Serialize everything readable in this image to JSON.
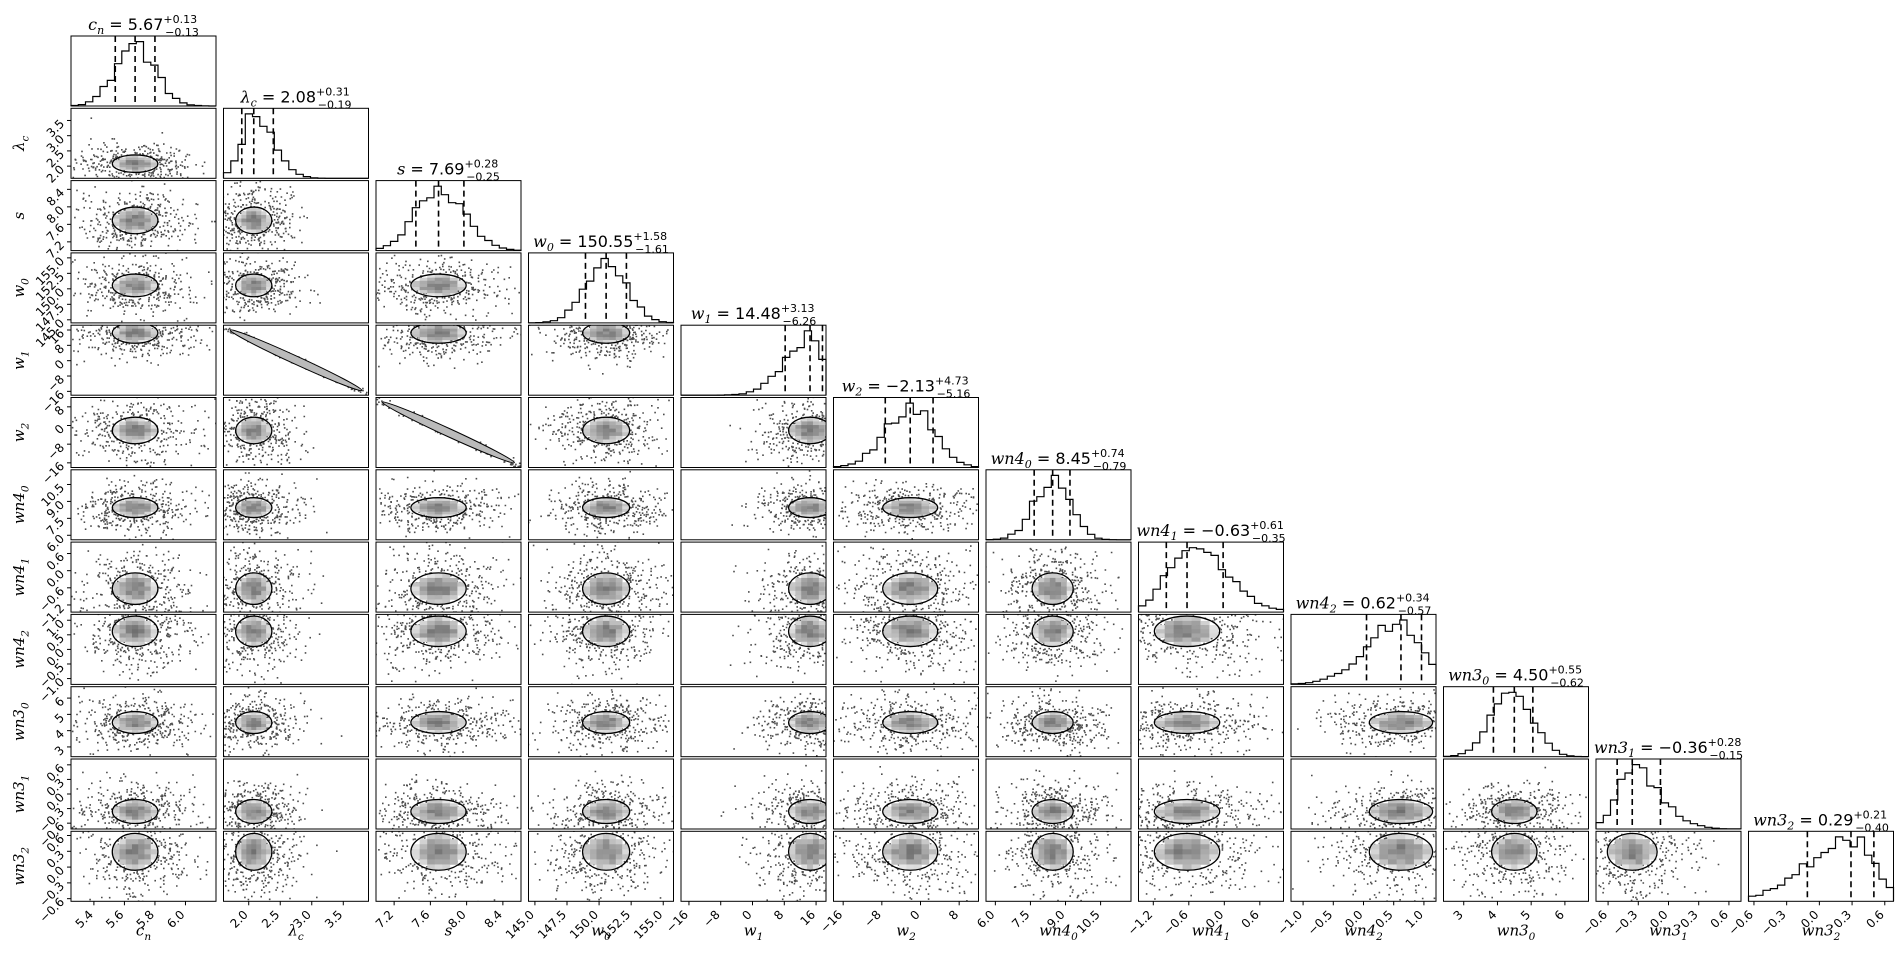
{
  "chart_data": {
    "type": "corner",
    "parameters": [
      {
        "label": "c_n",
        "title_sym": "c",
        "title_sub": "n",
        "median": "5.67",
        "plus": "+0.13",
        "minus": "−0.13",
        "q": [
          5.54,
          5.67,
          5.8
        ],
        "range": [
          5.25,
          6.2
        ],
        "ticks": [
          "5.4",
          "5.6",
          "5.8",
          "6.0"
        ],
        "tickvals": [
          5.4,
          5.6,
          5.8,
          6.0
        ],
        "xlabel": "c_n"
      },
      {
        "label": "λ_c",
        "title_sym": "λ",
        "title_sub": "c",
        "median": "2.08",
        "plus": "+0.31",
        "minus": "−0.19",
        "q": [
          1.89,
          2.08,
          2.39
        ],
        "range": [
          1.6,
          3.9
        ],
        "ticks": [
          "2.0",
          "2.5",
          "3.0",
          "3.5"
        ],
        "tickvals": [
          2.0,
          2.5,
          3.0,
          3.5
        ],
        "xlabel": "λ_c",
        "skew": "right"
      },
      {
        "label": "s",
        "title_sym": "s",
        "title_sub": "",
        "median": "7.69",
        "plus": "+0.28",
        "minus": "−0.25",
        "q": [
          7.44,
          7.69,
          7.97
        ],
        "range": [
          7.0,
          8.6
        ],
        "ticks": [
          "7.2",
          "7.6",
          "8.0",
          "8.4"
        ],
        "tickvals": [
          7.2,
          7.6,
          8.0,
          8.4
        ],
        "xlabel": "s"
      },
      {
        "label": "w_0",
        "title_sym": "w",
        "title_sub": "0",
        "median": "150.55",
        "plus": "+1.58",
        "minus": "−1.61",
        "q": [
          148.94,
          150.55,
          152.13
        ],
        "range": [
          144.5,
          155.8
        ],
        "ticks": [
          "145.0",
          "147.5",
          "150.0",
          "152.5",
          "155.0"
        ],
        "tickvals": [
          145,
          147.5,
          150,
          152.5,
          155
        ],
        "xlabel": "w_0"
      },
      {
        "label": "w_1",
        "title_sym": "w",
        "title_sub": "1",
        "median": "14.48",
        "plus": "+3.13",
        "minus": "−6.26",
        "q": [
          8.22,
          14.48,
          17.61
        ],
        "range": [
          -18,
          18.5
        ],
        "ticks": [
          "−16",
          "−8",
          "0",
          "8",
          "16"
        ],
        "tickvals": [
          -16,
          -8,
          0,
          8,
          16
        ],
        "xlabel": "w_1",
        "skew": "left"
      },
      {
        "label": "w_2",
        "title_sym": "w",
        "title_sub": "2",
        "median": "−2.13",
        "plus": "+4.73",
        "minus": "−5.16",
        "q": [
          -7.29,
          -2.13,
          2.6
        ],
        "range": [
          -18,
          12
        ],
        "ticks": [
          "−16",
          "−8",
          "0",
          "8"
        ],
        "tickvals": [
          -16,
          -8,
          0,
          8
        ],
        "xlabel": "w_2"
      },
      {
        "label": "wn4_0",
        "title_sym": "wn4",
        "title_sub": "0",
        "median": "8.45",
        "plus": "+0.74",
        "minus": "−0.79",
        "q": [
          7.66,
          8.45,
          9.19
        ],
        "range": [
          5.6,
          11.8
        ],
        "ticks": [
          "6.0",
          "7.5",
          "9.0",
          "10.5"
        ],
        "tickvals": [
          6.0,
          7.5,
          9.0,
          10.5
        ],
        "xlabel": "wn4_0"
      },
      {
        "label": "wn4_1",
        "title_sym": "wn4",
        "title_sub": "1",
        "median": "−0.63",
        "plus": "+0.61",
        "minus": "−0.35",
        "q": [
          -0.98,
          -0.63,
          -0.02
        ],
        "range": [
          -1.45,
          1.0
        ],
        "ticks": [
          "−1.2",
          "−0.6",
          "0.0",
          "0.6"
        ],
        "tickvals": [
          -1.2,
          -0.6,
          0.0,
          0.6
        ],
        "xlabel": "wn4_1",
        "skew": "right"
      },
      {
        "label": "wn4_2",
        "title_sym": "wn4",
        "title_sub": "2",
        "median": "0.62",
        "plus": "+0.34",
        "minus": "−0.57",
        "q": [
          0.05,
          0.62,
          0.96
        ],
        "range": [
          -1.2,
          1.2
        ],
        "ticks": [
          "−1.0",
          "−0.5",
          "0.0",
          "0.5",
          "1.0"
        ],
        "tickvals": [
          -1.0,
          -0.5,
          0.0,
          0.5,
          1.0
        ],
        "xlabel": "wn4_2",
        "skew": "left"
      },
      {
        "label": "wn3_0",
        "title_sym": "wn3",
        "title_sub": "0",
        "median": "4.50",
        "plus": "+0.55",
        "minus": "−0.62",
        "q": [
          3.88,
          4.5,
          5.05
        ],
        "range": [
          2.4,
          6.7
        ],
        "ticks": [
          "3",
          "4",
          "5",
          "6"
        ],
        "tickvals": [
          3,
          4,
          5,
          6
        ],
        "xlabel": "wn3_0"
      },
      {
        "label": "wn3_1",
        "title_sym": "wn3",
        "title_sub": "1",
        "median": "−0.36",
        "plus": "+0.28",
        "minus": "−0.15",
        "q": [
          -0.51,
          -0.36,
          -0.08
        ],
        "range": [
          -0.72,
          0.72
        ],
        "ticks": [
          "−0.6",
          "−0.3",
          "0.0",
          "0.3",
          "0.6"
        ],
        "tickvals": [
          -0.6,
          -0.3,
          0.0,
          0.3,
          0.6
        ],
        "xlabel": "wn3_1",
        "skew": "right"
      },
      {
        "label": "wn3_2",
        "title_sym": "wn3",
        "title_sub": "2",
        "median": "0.29",
        "plus": "+0.21",
        "minus": "−0.40",
        "q": [
          -0.11,
          0.29,
          0.5
        ],
        "range": [
          -0.65,
          0.68
        ],
        "ticks": [
          "−0.6",
          "−0.3",
          "0.0",
          "0.3",
          "0.6"
        ],
        "tickvals": [
          -0.6,
          -0.3,
          0.0,
          0.3,
          0.6
        ],
        "xlabel": "wn3_2",
        "skew": "left"
      }
    ],
    "strong_correlations": [
      {
        "x": "λ_c",
        "y": "w_1",
        "direction": "negative"
      },
      {
        "x": "s",
        "y": "w_2",
        "direction": "negative"
      }
    ],
    "grid": false,
    "legend": "none",
    "colors": {
      "ink": "#000000",
      "density_dark": "#111111",
      "density_light": "#f2f2f2"
    }
  }
}
